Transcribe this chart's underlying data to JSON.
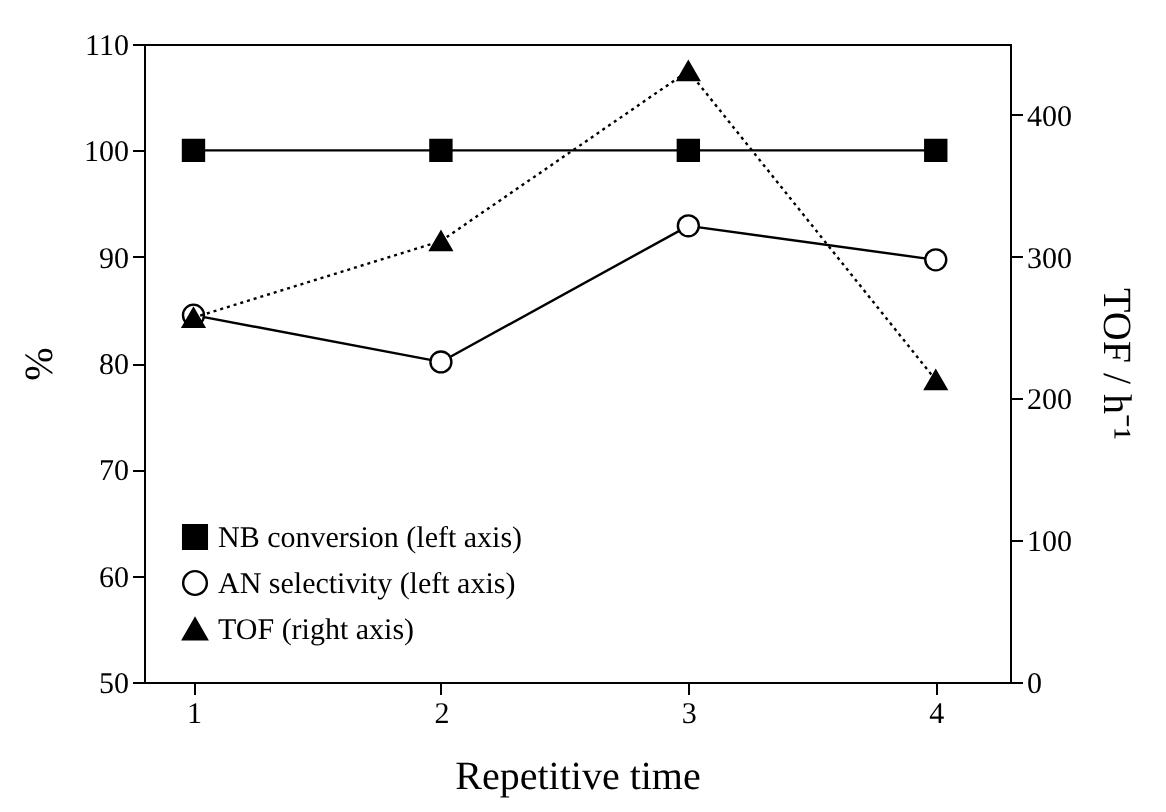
{
  "chart_data": {
    "type": "line",
    "xlabel": "Repetitive time",
    "ylabel": "%",
    "y2label": "TOF / h⁻¹",
    "x": [
      1,
      2,
      3,
      4
    ],
    "xlim": [
      0.8,
      4.3
    ],
    "xticks": [
      1,
      2,
      3,
      4
    ],
    "ylim": [
      50,
      110
    ],
    "yticks": [
      50,
      60,
      70,
      80,
      90,
      100,
      110
    ],
    "y2lim": [
      0,
      450
    ],
    "y2ticks": [
      0,
      100,
      200,
      300,
      400
    ],
    "legend": "bottom left",
    "grid": false,
    "series": [
      {
        "name": "NB conversion (left axis)",
        "color": "#000000",
        "marker": "square",
        "line_style": "solid",
        "values": [
          100,
          100,
          100,
          100
        ]
      },
      {
        "name": "AN selectivity (left axis)",
        "color": "#000000",
        "marker": "circle",
        "line_style": "solid",
        "values": [
          84.5,
          80.1,
          92.9,
          89.7
        ]
      },
      {
        "name": "TOF (right axis)",
        "color": "#000000",
        "marker": "triangle",
        "line_style": "dotted",
        "axis": "y2",
        "values": [
          257,
          311,
          431,
          213
        ]
      }
    ]
  }
}
